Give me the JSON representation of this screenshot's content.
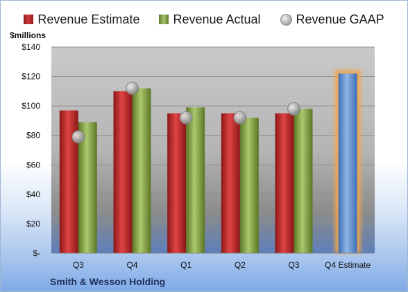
{
  "legend": {
    "estimate": "Revenue Estimate",
    "actual": "Revenue Actual",
    "gaap": "Revenue GAAP"
  },
  "ylabel": "$millions",
  "company": "Smith & Wesson Holding",
  "colors": {
    "estimate": "#c42b2b",
    "actual": "#8db04c",
    "gaap": "#b8b8b8",
    "q4_estimate": "#6b9bd6",
    "q4_glow": "#f5a64a"
  },
  "chart_data": {
    "type": "bar",
    "categories": [
      "Q3",
      "Q4",
      "Q1",
      "Q2",
      "Q3",
      "Q4 Estimate"
    ],
    "series": [
      {
        "name": "Revenue Estimate",
        "values": [
          97,
          110,
          95,
          95,
          95,
          122
        ]
      },
      {
        "name": "Revenue Actual",
        "values": [
          89,
          112,
          99,
          92,
          98,
          null
        ]
      },
      {
        "name": "Revenue GAAP",
        "values": [
          79,
          112,
          92,
          92,
          98,
          null
        ]
      }
    ],
    "ylabel": "$millions",
    "ylim": [
      0,
      140
    ],
    "ytick_labels": [
      "$-",
      "$20",
      "$40",
      "$60",
      "$80",
      "$100",
      "$120",
      "$140"
    ],
    "grid": true,
    "legend_position": "top"
  }
}
